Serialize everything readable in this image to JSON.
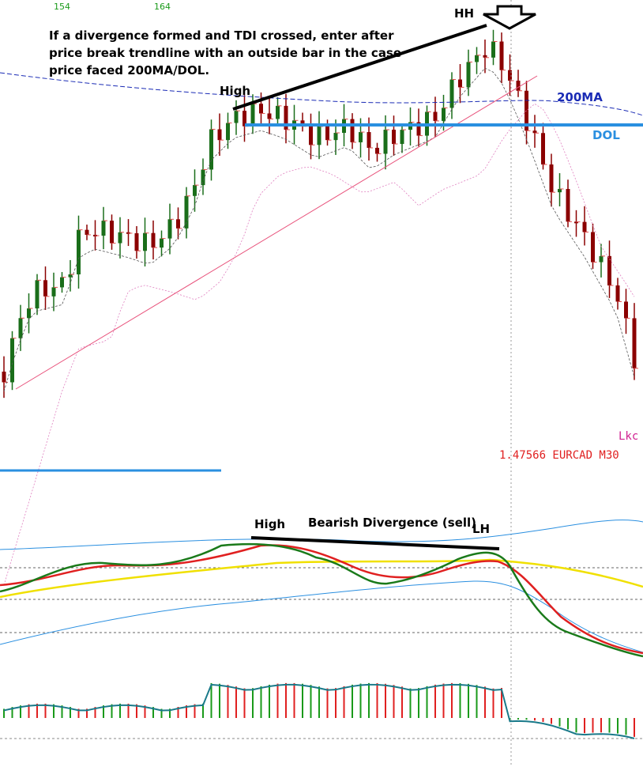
{
  "header": {
    "bar_numbers": [
      "154",
      "164"
    ]
  },
  "annotation": {
    "lines": [
      "If a divergence formed and TDI crossed, enter after",
      "price break trendline with an outside bar in the case",
      "price faced 200MA/DOL."
    ]
  },
  "labels": {
    "hh": "HH",
    "high": "High",
    "ma200": "200MA",
    "dol": "DOL"
  },
  "indicator_name": "Lkc",
  "price_info": "1.47566 EURCAD M30",
  "lower_panel": {
    "high": "High",
    "divergence": "Bearish Divergence (sell)",
    "lh": "LH"
  }
}
